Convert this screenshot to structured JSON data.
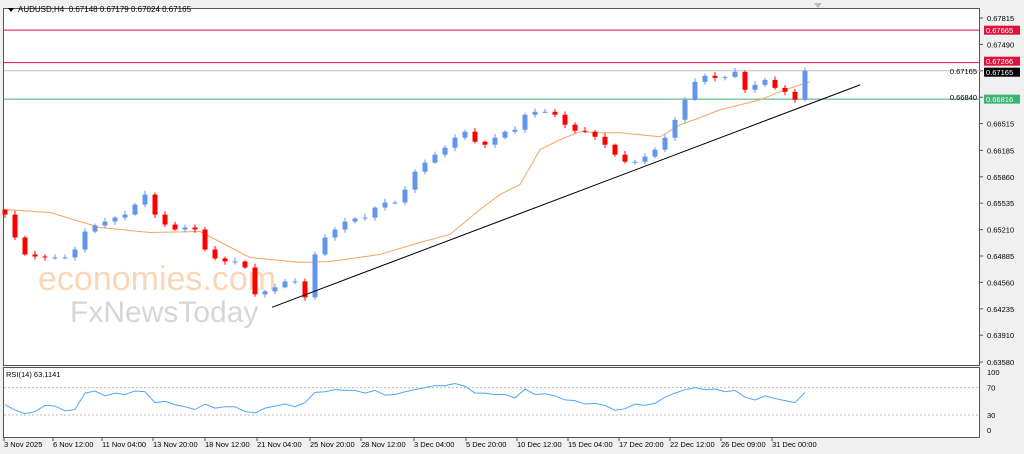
{
  "header": {
    "symbol": "AUDUSD,H4",
    "ohlc": "0.67148 0.67179 0.67024 0.67165"
  },
  "rsi": {
    "label": "RSI(14) 63.1141",
    "levels": [
      70,
      30
    ],
    "axis_labels": [
      "100",
      "70",
      "30",
      "0"
    ]
  },
  "watermark": {
    "line1": "economies.com",
    "line2": "FxNewsToday"
  },
  "colors": {
    "bull": "#6495ed",
    "bear": "#ff0000",
    "ma": "#f4a460",
    "rsi": "#4da6ff",
    "resistance": "#dc143c",
    "support": "#3cb371",
    "trendline": "#000000",
    "current": "#000000"
  },
  "chart_data": {
    "type": "candlestick",
    "title": "AUDUSD,H4",
    "ylim": [
      0.6358,
      0.67815
    ],
    "y_ticks": [
      "0.67815",
      "0.67490",
      "0.67165",
      "0.66840",
      "0.66515",
      "0.66185",
      "0.65860",
      "0.65535",
      "0.65210",
      "0.64885",
      "0.64560",
      "0.64235",
      "0.63910",
      "0.63580"
    ],
    "x_tick_labels": [
      "3 Nov 2025",
      "6 Nov 12:00",
      "11 Nov 04:00",
      "13 Nov 20:00",
      "18 Nov 12:00",
      "21 Nov 04:00",
      "25 Nov 20:00",
      "28 Nov 12:00",
      "3 Dec 04:00",
      "5 Dec 20:00",
      "10 Dec 12:00",
      "15 Dec 04:00",
      "17 Dec 20:00",
      "22 Dec 12:00",
      "26 Dec 09:00",
      "31 Dec 00:00"
    ],
    "closes": [
      0.65395,
      0.65113,
      0.64904,
      0.64879,
      0.64867,
      0.64867,
      0.64867,
      0.64965,
      0.65186,
      0.6526,
      0.65309,
      0.65358,
      0.65395,
      0.65518,
      0.65641,
      0.65395,
      0.65272,
      0.65211,
      0.65236,
      0.65211,
      0.64965,
      0.64855,
      0.64818,
      0.64818,
      0.64744,
      0.64413,
      0.6445,
      0.64499,
      0.64572,
      0.64572,
      0.64376,
      0.64904,
      0.65113,
      0.65211,
      0.65309,
      0.65346,
      0.65358,
      0.65481,
      0.65543,
      0.65543,
      0.65702,
      0.65923,
      0.66034,
      0.66132,
      0.66218,
      0.66341,
      0.66415,
      0.66292,
      0.66255,
      0.66341,
      0.66415,
      0.66439,
      0.66624,
      0.6666,
      0.6666,
      0.66624,
      0.66501,
      0.66427,
      0.66415,
      0.66353,
      0.66255,
      0.66132,
      0.66046,
      0.66046,
      0.66108,
      0.66194,
      0.66341,
      0.66562,
      0.66808,
      0.67029,
      0.67103,
      0.67078,
      0.6709,
      0.67152,
      0.66931,
      0.66992,
      0.67053,
      0.66955,
      0.66906,
      0.66808,
      0.67165
    ],
    "moving_average": [
      [
        0,
        0.65457
      ],
      [
        4.5,
        0.6542
      ],
      [
        9.5,
        0.65236
      ],
      [
        14.5,
        0.65174
      ],
      [
        19.5,
        0.65186
      ],
      [
        24.5,
        0.64867
      ],
      [
        29.5,
        0.64806
      ],
      [
        32.5,
        0.64818
      ],
      [
        37.5,
        0.64904
      ],
      [
        41.5,
        0.65051
      ],
      [
        44.5,
        0.6515
      ],
      [
        47.5,
        0.65457
      ],
      [
        49.5,
        0.65641
      ],
      [
        51.5,
        0.65764
      ],
      [
        53.5,
        0.66194
      ],
      [
        55.5,
        0.66317
      ],
      [
        57.5,
        0.66415
      ],
      [
        59.5,
        0.66403
      ],
      [
        61.5,
        0.66403
      ],
      [
        63.5,
        0.66378
      ],
      [
        65.5,
        0.66353
      ],
      [
        67.5,
        0.66501
      ],
      [
        69.5,
        0.66587
      ],
      [
        71.5,
        0.66685
      ],
      [
        73.5,
        0.66746
      ],
      [
        75.5,
        0.66808
      ],
      [
        77.5,
        0.66906
      ],
      [
        79.5,
        0.66992
      ],
      [
        80.5,
        0.67029
      ]
    ],
    "horizontal_lines": [
      {
        "price": 0.67665,
        "label": "0.67665",
        "kind": "resistance"
      },
      {
        "price": 0.67266,
        "label": "0.67266",
        "kind": "resistance"
      },
      {
        "price": 0.67165,
        "label": "0.67165",
        "kind": "current"
      },
      {
        "price": 0.66816,
        "label": "0.66816",
        "kind": "support"
      }
    ],
    "trendline": [
      [
        26.7,
        0.64253
      ],
      [
        85.5,
        0.66992
      ]
    ],
    "rsi_values": [
      45,
      37,
      32,
      35,
      44,
      43,
      36,
      38,
      62,
      65,
      58,
      62,
      60,
      65,
      64,
      48,
      50,
      45,
      42,
      38,
      46,
      40,
      42,
      42,
      35,
      33,
      40,
      43,
      46,
      42,
      48,
      63,
      64,
      67,
      66,
      66,
      62,
      66,
      59,
      60,
      64,
      67,
      70,
      73,
      73,
      76,
      72,
      62,
      62,
      60,
      60,
      55,
      68,
      60,
      61,
      58,
      52,
      51,
      46,
      47,
      44,
      37,
      39,
      46,
      44,
      47,
      56,
      62,
      67,
      70,
      67,
      68,
      64,
      66,
      56,
      52,
      58,
      54,
      51,
      48,
      63.1141
    ],
    "rsi_ylim": [
      0,
      100
    ]
  }
}
